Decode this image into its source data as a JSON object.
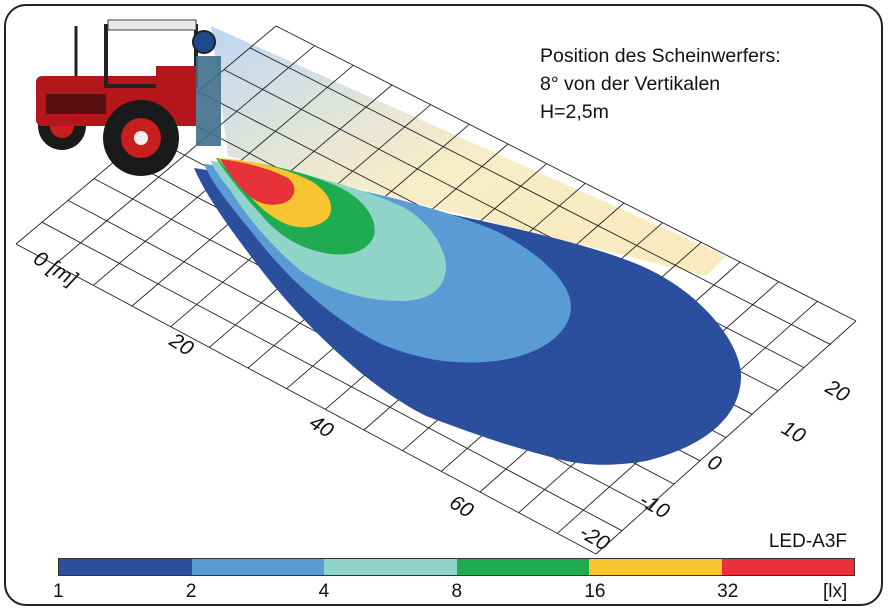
{
  "chart_data": {
    "type": "heatmap",
    "title_lines": [
      "Position des Scheinwerfers:",
      "8° von der Vertikalen",
      "H=2,5m"
    ],
    "model": "LED-A3F",
    "x_axis": {
      "label": "0 [m]",
      "ticks": [
        "20",
        "40",
        "60"
      ]
    },
    "y_axis": {
      "ticks": [
        "20",
        "10",
        "0",
        "-10",
        "-20"
      ]
    },
    "colorbar": {
      "ticks": [
        "1",
        "2",
        "4",
        "8",
        "16",
        "32"
      ],
      "unit": "[lx]",
      "colors": [
        "#2b4f9c",
        "#5b9bd5",
        "#8fd3c9",
        "#1fab4f",
        "#f7c531",
        "#e8323a"
      ]
    }
  }
}
